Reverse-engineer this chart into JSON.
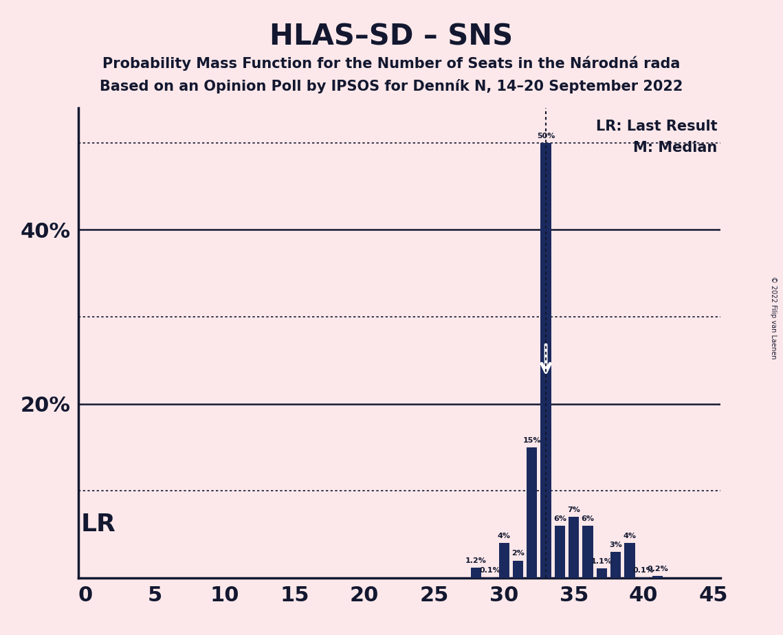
{
  "title": "HLAS–SD – SNS",
  "subtitle1": "Probability Mass Function for the Number of Seats in the Národná rada",
  "subtitle2": "Based on an Opinion Poll by IPSOS for Denník N, 14–20 September 2022",
  "copyright": "© 2022 Filip van Laenen",
  "background_color": "#fce8ea",
  "bar_color": "#1b2a5e",
  "axis_color": "#131830",
  "seats": [
    0,
    1,
    2,
    3,
    4,
    5,
    6,
    7,
    8,
    9,
    10,
    11,
    12,
    13,
    14,
    15,
    16,
    17,
    18,
    19,
    20,
    21,
    22,
    23,
    24,
    25,
    26,
    27,
    28,
    29,
    30,
    31,
    32,
    33,
    34,
    35,
    36,
    37,
    38,
    39,
    40,
    41,
    42,
    43,
    44,
    45
  ],
  "probs": [
    0,
    0,
    0,
    0,
    0,
    0,
    0,
    0,
    0,
    0,
    0,
    0,
    0,
    0,
    0,
    0,
    0,
    0,
    0,
    0,
    0,
    0,
    0,
    0,
    0,
    0,
    0,
    0,
    1.2,
    0.1,
    4,
    2,
    15,
    50,
    6,
    7,
    6,
    1.1,
    3,
    4,
    0.1,
    0.2,
    0,
    0,
    0,
    0
  ],
  "lr_seat": 33,
  "median_seat": 33,
  "xlim": [
    -0.5,
    45.5
  ],
  "ylim": [
    0,
    54
  ],
  "solid_yticks": [
    20,
    40
  ],
  "dotted_yticks": [
    10,
    30,
    50
  ],
  "ytick_labels_pos": [
    20,
    40
  ],
  "ytick_labels_text": [
    "20%",
    "40%"
  ],
  "xticks": [
    0,
    5,
    10,
    15,
    20,
    25,
    30,
    35,
    40,
    45
  ],
  "title_fontsize": 30,
  "subtitle_fontsize": 15,
  "tick_fontsize": 22,
  "bar_label_fontsize": 8,
  "legend_fontsize": 15,
  "lr_label_fontsize": 22
}
